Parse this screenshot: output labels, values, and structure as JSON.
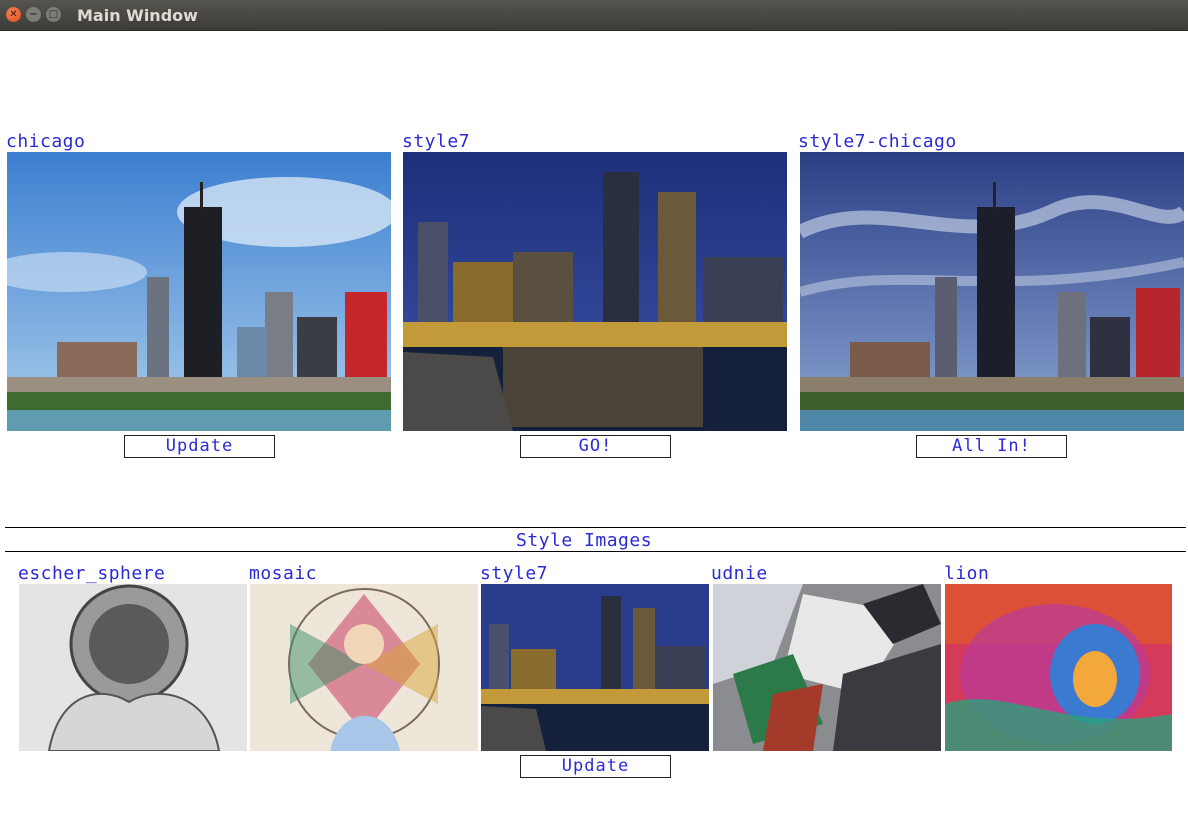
{
  "window": {
    "title": "Main Window"
  },
  "main": {
    "panels": [
      {
        "label": "chicago",
        "image": "chicago-skyline-day"
      },
      {
        "label": "style7",
        "image": "boston-skyline-night"
      },
      {
        "label": "style7-chicago",
        "image": "stylized-chicago-skyline"
      }
    ],
    "buttons": {
      "update": "Update",
      "go": "GO!",
      "all_in": "All In!"
    }
  },
  "style_section": {
    "header": "Style Images",
    "styles": [
      {
        "label": "escher_sphere",
        "image": "escher-sphere"
      },
      {
        "label": "mosaic",
        "image": "stained-glass-mosaic"
      },
      {
        "label": "style7",
        "image": "boston-skyline-night"
      },
      {
        "label": "udnie",
        "image": "udnie-abstract"
      },
      {
        "label": "lion",
        "image": "colorful-lion"
      }
    ],
    "update_button": "Update"
  },
  "colors": {
    "label_text": "#2a2ad6",
    "titlebar": "#3c3b37",
    "close_button": "#df4b16"
  }
}
